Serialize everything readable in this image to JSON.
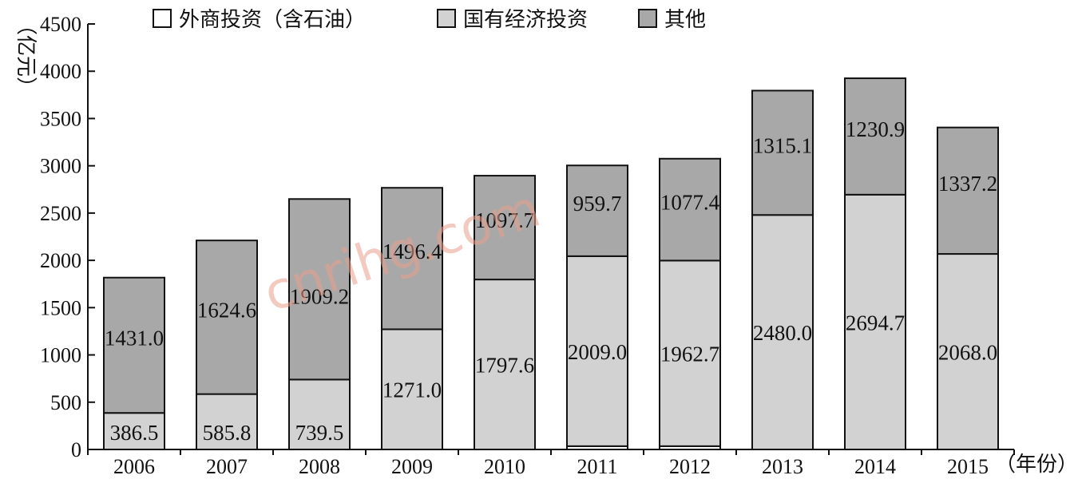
{
  "chart_data": {
    "type": "bar",
    "stacked": true,
    "categories": [
      "2006",
      "2007",
      "2008",
      "2009",
      "2010",
      "2011",
      "2012",
      "2013",
      "2014",
      "2015"
    ],
    "series": [
      {
        "name": "外商投资（含石油）",
        "values": [
          0,
          0,
          0,
          0,
          0,
          35,
          35,
          0,
          0,
          0
        ],
        "color": "#ffffff"
      },
      {
        "name": "国有经济投资",
        "values": [
          386.5,
          585.8,
          739.5,
          1271.0,
          1797.6,
          2009.0,
          1962.7,
          2480.0,
          2694.7,
          2068.0
        ],
        "color": "#d2d2d2"
      },
      {
        "name": "其他",
        "values": [
          1431.0,
          1624.6,
          1909.2,
          1496.4,
          1097.7,
          959.7,
          1077.4,
          1315.1,
          1230.9,
          1337.2
        ],
        "color": "#a8a8a8"
      }
    ],
    "labels": {
      "国有经济投资": [
        "386.5",
        "585.8",
        "739.5",
        "1271.0",
        "1797.6",
        "2009.0",
        "1962.7",
        "2480.0",
        "2694.7",
        "2068.0"
      ],
      "其他": [
        "1431.0",
        "1624.6",
        "1909.2",
        "1496.4",
        "1097.7",
        "959.7",
        "1077.4",
        "1315.1",
        "1230.9",
        "1337.2"
      ]
    },
    "ylim": [
      0,
      4500
    ],
    "yticks": [
      "0",
      "500",
      "1000",
      "1500",
      "2000",
      "2500",
      "3000",
      "3500",
      "4000",
      "4500"
    ],
    "ylabel": "（亿元）",
    "xlabel": "（年份）",
    "legend_position": "top",
    "grid": false
  },
  "watermark": "cnrihg.com"
}
